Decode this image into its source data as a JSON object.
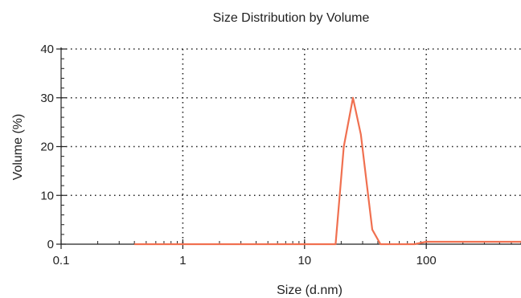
{
  "chart_data": {
    "type": "line",
    "title": "Size Distribution by Volume",
    "xlabel": "Size (d.nm)",
    "ylabel": "Volume (%)",
    "x_scale": "log",
    "xlim": [
      0.1,
      600
    ],
    "ylim": [
      0,
      40
    ],
    "x_ticks": [
      0.1,
      1,
      10,
      100
    ],
    "x_tick_labels": [
      "0.1",
      "1",
      "10",
      "100"
    ],
    "y_ticks": [
      0,
      10,
      20,
      30,
      40
    ],
    "y_tick_labels": [
      "0",
      "10",
      "20",
      "30",
      "40"
    ],
    "grid": true,
    "line_color": "#f07050",
    "series": [
      {
        "x": [
          0.4,
          18,
          21,
          25,
          29,
          36,
          42,
          50,
          60,
          80,
          100,
          600
        ],
        "y": [
          0,
          0,
          20,
          30,
          22.5,
          3,
          0,
          0,
          0,
          0,
          0.5,
          0.5
        ]
      }
    ]
  }
}
